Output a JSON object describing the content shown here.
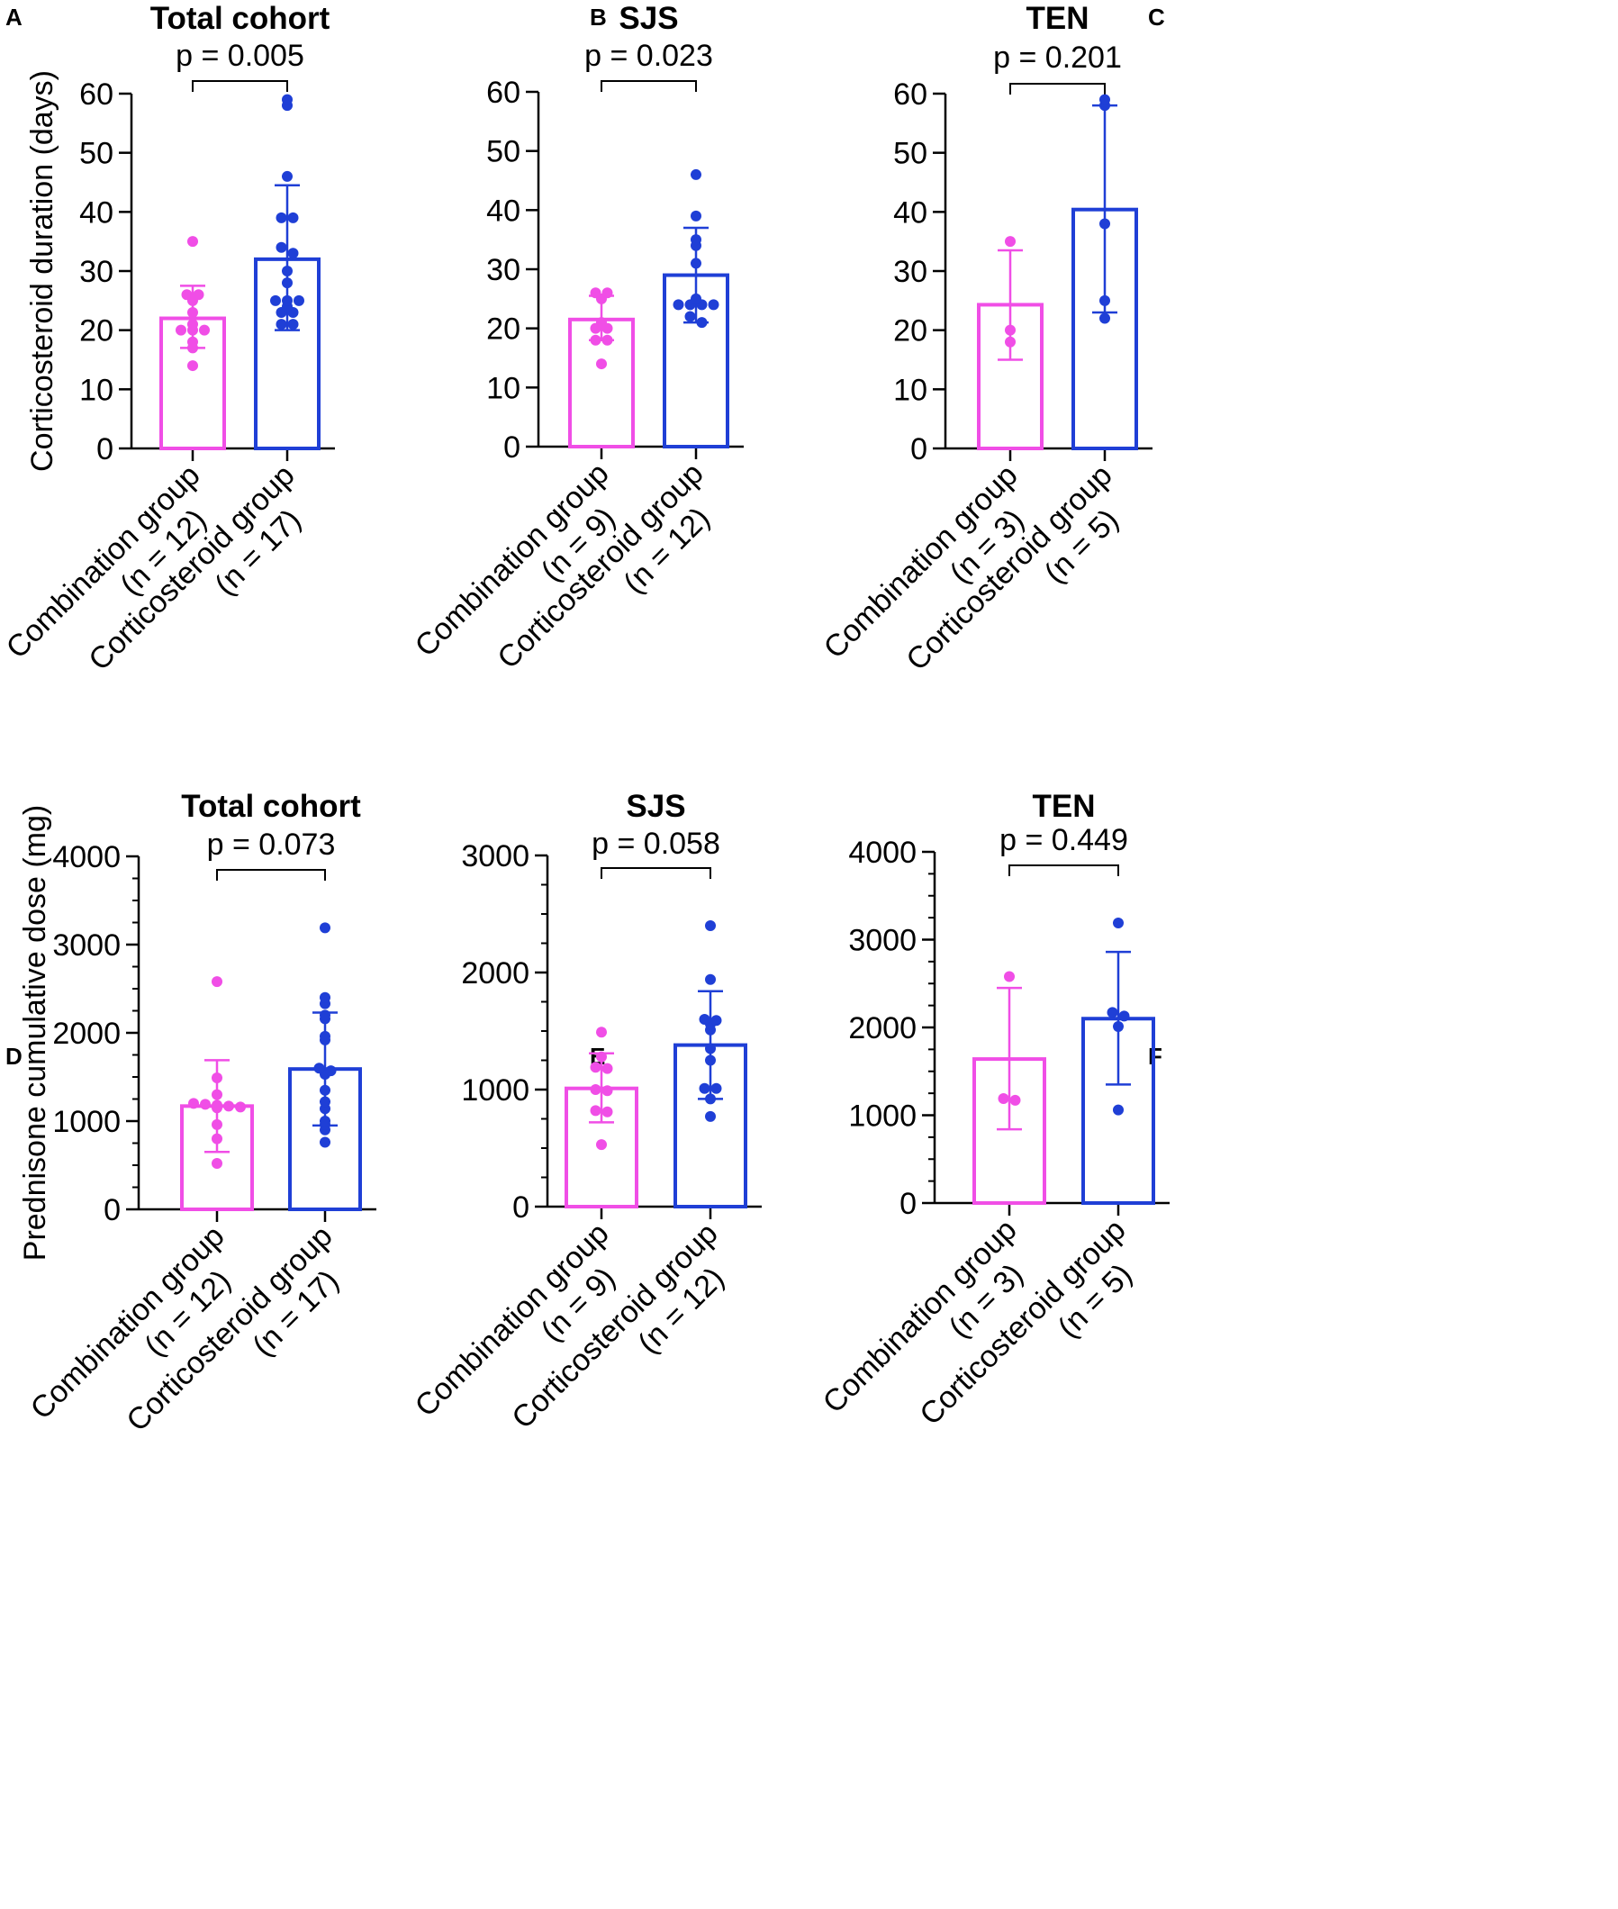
{
  "figure": {
    "colors": {
      "combination": "#f04ee6",
      "corticosteroid": "#1f3fd6",
      "axis": "#000000"
    },
    "panels": [
      {
        "letter": "A",
        "title": "Total cohort",
        "p_label": "p = 0.005",
        "y_label": "Corticosteroid duration (days)",
        "chart_data": {
          "type": "bar",
          "title": "Total cohort",
          "ylabel": "Corticosteroid duration (days)",
          "ylim": [
            0,
            60
          ],
          "y_ticks": [
            "0",
            "10",
            "20",
            "30",
            "40",
            "50",
            "60"
          ],
          "y_tick_values": [
            0,
            10,
            20,
            30,
            40,
            50,
            60
          ],
          "minor_ticks": false,
          "categories": [
            [
              "Combination group",
              "(n = 12)"
            ],
            [
              "Corticosteroid group",
              "(n = 17)"
            ]
          ],
          "series": [
            {
              "name": "Combination group",
              "mean": 22.0,
              "sd_low": 17.0,
              "sd_high": 27.5,
              "points": [
                35,
                26,
                26,
                25,
                23,
                21,
                20,
                20,
                20,
                18,
                17,
                14
              ]
            },
            {
              "name": "Corticosteroid group",
              "mean": 32.0,
              "sd_low": 20.0,
              "sd_high": 44.5,
              "points": [
                59,
                58,
                46,
                39,
                39,
                34,
                33,
                30,
                28,
                25,
                25,
                25,
                24,
                23,
                23,
                21,
                21
              ]
            }
          ]
        }
      },
      {
        "letter": "B",
        "title": "SJS",
        "p_label": "p = 0.023",
        "y_label": "",
        "chart_data": {
          "type": "bar",
          "title": "SJS",
          "ylabel": "",
          "ylim": [
            0,
            60
          ],
          "y_ticks": [
            "0",
            "10",
            "20",
            "30",
            "40",
            "50",
            "60"
          ],
          "y_tick_values": [
            0,
            10,
            20,
            30,
            40,
            50,
            60
          ],
          "minor_ticks": false,
          "categories": [
            [
              "Combination group",
              "(n = 9)"
            ],
            [
              "Corticosteroid group",
              "(n = 12)"
            ]
          ],
          "series": [
            {
              "name": "Combination group",
              "mean": 21.5,
              "sd_low": 18.0,
              "sd_high": 25.5,
              "points": [
                26,
                26,
                25,
                21,
                20,
                20,
                18,
                18,
                14
              ]
            },
            {
              "name": "Corticosteroid group",
              "mean": 29.0,
              "sd_low": 21.0,
              "sd_high": 37.0,
              "points": [
                46,
                39,
                35,
                34,
                31,
                25,
                24,
                24,
                24,
                24,
                22,
                21
              ]
            }
          ]
        }
      },
      {
        "letter": "C",
        "title": "TEN",
        "p_label": "p = 0.201",
        "y_label": "",
        "chart_data": {
          "type": "bar",
          "title": "TEN",
          "ylabel": "",
          "ylim": [
            0,
            60
          ],
          "y_ticks": [
            "0",
            "10",
            "20",
            "30",
            "40",
            "50",
            "60"
          ],
          "y_tick_values": [
            0,
            10,
            20,
            30,
            40,
            50,
            60
          ],
          "minor_ticks": false,
          "categories": [
            [
              "Combination group",
              "(n = 3)"
            ],
            [
              "Corticosteroid group",
              "(n = 5)"
            ]
          ],
          "series": [
            {
              "name": "Combination group",
              "mean": 24.3,
              "sd_low": 15.0,
              "sd_high": 33.5,
              "points": [
                35,
                20,
                18
              ]
            },
            {
              "name": "Corticosteroid group",
              "mean": 40.4,
              "sd_low": 23.0,
              "sd_high": 58.0,
              "points": [
                59,
                58,
                38,
                25,
                22
              ]
            }
          ]
        }
      },
      {
        "letter": "D",
        "title": "Total cohort",
        "p_label": "p = 0.073",
        "y_label": "Prednisone cumulative dose (mg)",
        "chart_data": {
          "type": "bar",
          "title": "Total cohort",
          "ylabel": "Prednisone cumulative dose (mg)",
          "ylim": [
            0,
            4000
          ],
          "y_ticks": [
            "0",
            "1000",
            "2000",
            "3000",
            "4000"
          ],
          "y_tick_values": [
            0,
            1000,
            2000,
            3000,
            4000
          ],
          "minor_ticks": true,
          "categories": [
            [
              "Combination group",
              "(n = 12)"
            ],
            [
              "Corticosteroid group",
              "(n = 17)"
            ]
          ],
          "series": [
            {
              "name": "Combination group",
              "mean": 1170,
              "sd_low": 650,
              "sd_high": 1690,
              "points": [
                2580,
                1490,
                1300,
                1200,
                1190,
                1180,
                1170,
                1160,
                1150,
                960,
                800,
                520
              ]
            },
            {
              "name": "Corticosteroid group",
              "mean": 1590,
              "sd_low": 950,
              "sd_high": 2230,
              "points": [
                3190,
                2400,
                2330,
                2200,
                2160,
                1960,
                1920,
                1600,
                1570,
                1530,
                1350,
                1220,
                1140,
                1000,
                960,
                900,
                760
              ]
            }
          ]
        }
      },
      {
        "letter": "E",
        "title": "SJS",
        "p_label": "p = 0.058",
        "y_label": "",
        "chart_data": {
          "type": "bar",
          "title": "SJS",
          "ylabel": "",
          "ylim": [
            0,
            3000
          ],
          "y_ticks": [
            "0",
            "1000",
            "2000",
            "3000"
          ],
          "y_tick_values": [
            0,
            1000,
            2000,
            3000
          ],
          "minor_ticks": true,
          "categories": [
            [
              "Combination group",
              "(n = 9)"
            ],
            [
              "Corticosteroid group",
              "(n = 12)"
            ]
          ],
          "series": [
            {
              "name": "Combination group",
              "mean": 1010,
              "sd_low": 720,
              "sd_high": 1310,
              "points": [
                1490,
                1280,
                1190,
                1180,
                1000,
                990,
                820,
                810,
                530
              ]
            },
            {
              "name": "Corticosteroid group",
              "mean": 1380,
              "sd_low": 920,
              "sd_high": 1840,
              "points": [
                2400,
                1940,
                1600,
                1590,
                1560,
                1510,
                1350,
                1250,
                1010,
                1010,
                920,
                770
              ]
            }
          ]
        }
      },
      {
        "letter": "F",
        "title": "TEN",
        "p_label": "p = 0.449",
        "y_label": "",
        "chart_data": {
          "type": "bar",
          "title": "TEN",
          "ylabel": "",
          "ylim": [
            0,
            4000
          ],
          "y_ticks": [
            "0",
            "1000",
            "2000",
            "3000",
            "4000"
          ],
          "y_tick_values": [
            0,
            1000,
            2000,
            3000,
            4000
          ],
          "minor_ticks": true,
          "categories": [
            [
              "Combination group",
              "(n = 3)"
            ],
            [
              "Corticosteroid group",
              "(n = 5)"
            ]
          ],
          "series": [
            {
              "name": "Combination group",
              "mean": 1640,
              "sd_low": 840,
              "sd_high": 2450,
              "points": [
                2580,
                1190,
                1170
              ]
            },
            {
              "name": "Corticosteroid group",
              "mean": 2100,
              "sd_low": 1350,
              "sd_high": 2860,
              "points": [
                3190,
                2170,
                2130,
                2010,
                1060
              ]
            }
          ]
        }
      }
    ]
  }
}
